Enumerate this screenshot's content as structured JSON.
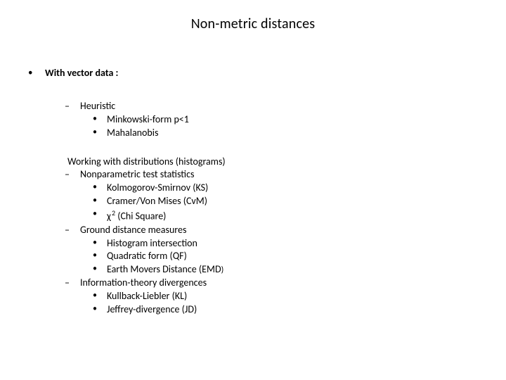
{
  "title": "Non-metric distances",
  "root": {
    "bullet": "•",
    "label": "With vector data :"
  },
  "group1": {
    "dash": "–",
    "heuristic": "Heuristic",
    "b": "•",
    "minkowski": "Minkowski-form p<1",
    "mahalanobis": "Mahalanobis"
  },
  "group2": {
    "header": "Working with distributions (histograms)",
    "dash": "–",
    "b": "•",
    "nonparam": "Nonparametric test statistics",
    "ks": "Kolmogorov-Smirnov (KS)",
    "cvm": "Cramer/Von Mises (CvM)",
    "chi_sym": "χ",
    "chi_sup": "2",
    "chi_rest": " (Chi Square)",
    "ground": "Ground distance measures",
    "hist": "Histogram intersection",
    "qf": "Quadratic form (QF)",
    "emd_main": "Earth Movers Distance (EMD",
    "emd_close": ")",
    "info": "Information-theory divergences",
    "kl": "Kullback-Liebler (KL)",
    "jd": "Jeffrey-divergence (JD)"
  },
  "style": {
    "background": "#ffffff",
    "text_color": "#000000",
    "title_fontsize": 20,
    "body_fontsize": 14,
    "font_family": "Calibri"
  }
}
